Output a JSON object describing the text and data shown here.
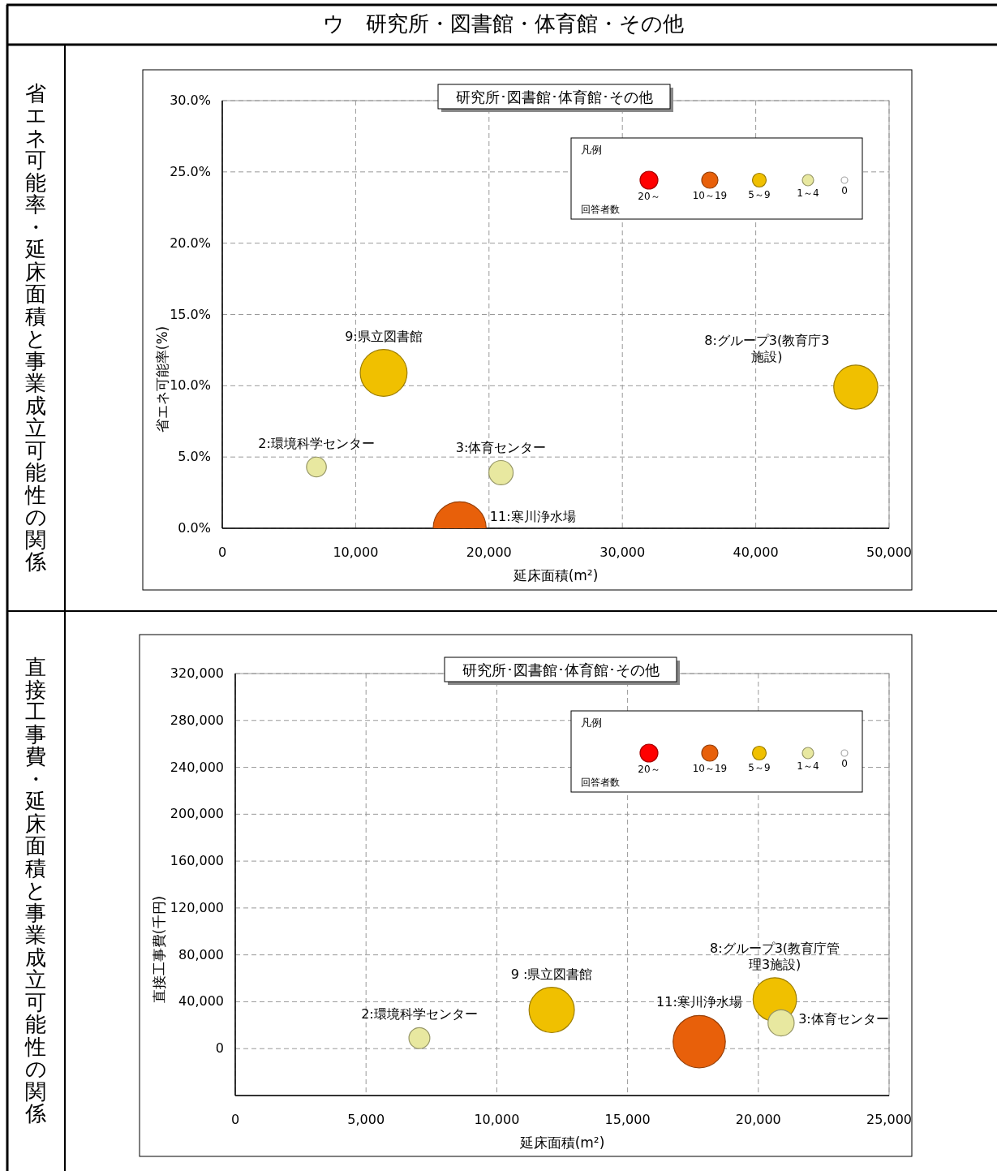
{
  "chart_data": [
    {
      "type": "bubble",
      "title": "研究所･図書館･体育館･その他",
      "subtitle": "省エネ可能率・延床面積と事業成立可能性の関係",
      "xlabel": "延床面積(m²)",
      "ylabel": "省エネ可能率(%)",
      "legend_title": "凡例",
      "legend": "top right",
      "grid": true,
      "xlim": [
        0,
        50000
      ],
      "xticks": [
        0,
        {
          "value": 10000,
          "label": "10,000"
        },
        {
          "value": 20000,
          "label": "20,000"
        },
        {
          "value": 30000,
          "label": "30,000"
        },
        {
          "value": 40000,
          "label": "40,000"
        },
        {
          "value": 50000,
          "label": "50,000"
        }
      ],
      "ylim": [
        0,
        30
      ],
      "yticks": [
        {
          "value": 0,
          "label": "0.0%"
        },
        {
          "value": 5,
          "label": "5.0%"
        },
        {
          "value": 10,
          "label": "10.0%"
        },
        {
          "value": 15,
          "label": "15.0%"
        },
        {
          "value": 20,
          "label": "20.0%"
        },
        {
          "value": 25,
          "label": "25.0%"
        },
        {
          "value": 30,
          "label": "30.0%"
        }
      ],
      "series": [
        {
          "name": "20～",
          "color": "#ff0000"
        },
        {
          "name": "10～19",
          "color": "#e8600a",
          "x": [
            17800
          ],
          "values": [
            0
          ],
          "sizes": [
            1
          ]
        },
        {
          "name": "5～9",
          "color": "#f0c000",
          "x": [
            12100,
            47500
          ],
          "values": [
            10.9,
            9.9
          ],
          "sizes": [
            0.78,
            0.69
          ]
        },
        {
          "name": "1～4",
          "color": "#e8e8a0",
          "x": [
            7060,
            20900
          ],
          "values": [
            4.3,
            3.9
          ],
          "sizes": [
            0.14,
            0.21
          ]
        },
        {
          "name": "0",
          "color": "#ffffff"
        }
      ],
      "annotations": [
        "ウ　研究所・図書館・体育館・その他",
        "回答者数",
        {
          "text": "9:県立図書館",
          "x": 12100,
          "y": 10.9
        },
        {
          "text": "8:グループ3(教育庁3施設)",
          "x": 47500,
          "y": 9.9
        },
        {
          "text": "2:環境科学センター",
          "x": 7060,
          "y": 4.3
        },
        {
          "text": "3:体育センター",
          "x": 20900,
          "y": 3.9
        },
        {
          "text": "11:寒川浄水場",
          "x": 17800,
          "y": 0
        }
      ]
    },
    {
      "type": "bubble",
      "title": "研究所･図書館･体育館･その他",
      "subtitle": "直接工事費・延床面積と事業成立可能性の関係",
      "xlabel": "延床面積(m²)",
      "ylabel": "直接工事費(千円)",
      "legend_title": "凡例",
      "legend": "top right",
      "grid": true,
      "xlim": [
        0,
        25000
      ],
      "xticks": [
        0,
        {
          "value": 5000,
          "label": "5,000"
        },
        {
          "value": 10000,
          "label": "10,000"
        },
        {
          "value": 15000,
          "label": "15,000"
        },
        {
          "value": 20000,
          "label": "20,000"
        },
        {
          "value": 25000,
          "label": "25,000"
        }
      ],
      "ylim": [
        -40000,
        320000
      ],
      "yticks": [
        0,
        {
          "value": 40000,
          "label": "40,000"
        },
        {
          "value": 80000,
          "label": "80,000"
        },
        {
          "value": 120000,
          "label": "120,000"
        },
        {
          "value": 160000,
          "label": "160,000"
        },
        {
          "value": 200000,
          "label": "200,000"
        },
        {
          "value": 240000,
          "label": "240,000"
        },
        {
          "value": 280000,
          "label": "280,000"
        },
        {
          "value": 320000,
          "label": "320,000"
        }
      ],
      "series": [
        {
          "name": "20～",
          "color": "#ff0000"
        },
        {
          "name": "10～19",
          "color": "#e8600a",
          "x": [
            17740
          ],
          "values": [
            6000
          ],
          "sizes": [
            1
          ]
        },
        {
          "name": "5～9",
          "color": "#f0c000",
          "x": [
            12100,
            20630
          ],
          "values": [
            33000,
            42000
          ],
          "sizes": [
            0.75,
            0.69
          ]
        },
        {
          "name": "1～4",
          "color": "#e8e8a0",
          "x": [
            7040,
            20870
          ],
          "values": [
            9000,
            22000
          ],
          "sizes": [
            0.16,
            0.25
          ]
        },
        {
          "name": "0",
          "color": "#ffffff"
        }
      ],
      "annotations": [
        "回答者数",
        {
          "text": "9 :県立図書館",
          "x": 12100,
          "y": 33000
        },
        {
          "text": "8:グループ3(教育庁管理3施設)",
          "x": 20630,
          "y": 42000
        },
        {
          "text": "2:環境科学センター",
          "x": 7040,
          "y": 9000
        },
        {
          "text": "3:体育センター",
          "x": 20870,
          "y": 22000
        },
        {
          "text": "11:寒川浄水場",
          "x": 17740,
          "y": 6000
        }
      ]
    }
  ]
}
